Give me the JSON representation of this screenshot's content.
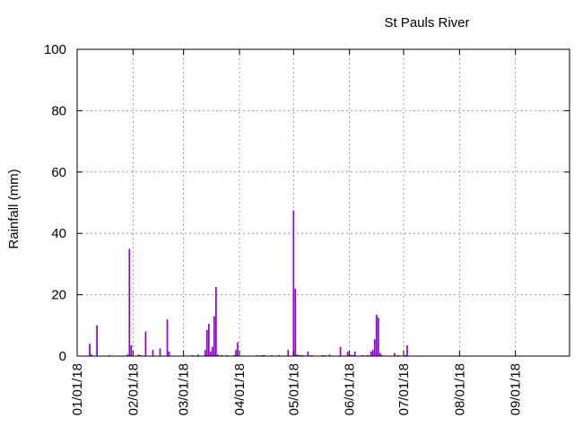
{
  "chart_data": {
    "type": "bar",
    "title": "St Pauls River",
    "xlabel": "",
    "ylabel": "Rainfall (mm)",
    "ylim": [
      0,
      100
    ],
    "yticks": [
      0,
      20,
      40,
      60,
      80,
      100
    ],
    "x_date_range": [
      "2018-01-01",
      "2018-09-30"
    ],
    "xtick_dates": [
      "2018-01-01",
      "2018-02-01",
      "2018-03-01",
      "2018-04-01",
      "2018-05-01",
      "2018-06-01",
      "2018-07-01",
      "2018-08-01",
      "2018-09-01"
    ],
    "xtick_labels": [
      "01/01/18",
      "02/01/18",
      "03/01/18",
      "04/01/18",
      "05/01/18",
      "06/01/18",
      "07/01/18",
      "08/01/18",
      "09/01/18"
    ],
    "grid": true,
    "bar_color": "#9400d3",
    "series": [
      {
        "x": [
          "2018-01-08",
          "2018-01-09",
          "2018-01-12",
          "2018-01-19",
          "2018-01-29",
          "2018-01-30",
          "2018-01-31",
          "2018-02-04",
          "2018-02-05",
          "2018-02-08",
          "2018-02-12",
          "2018-02-16",
          "2018-02-20",
          "2018-02-21",
          "2018-03-06",
          "2018-03-09",
          "2018-03-13",
          "2018-03-14",
          "2018-03-15",
          "2018-03-16",
          "2018-03-17",
          "2018-03-18",
          "2018-03-19",
          "2018-03-20",
          "2018-03-22",
          "2018-03-25",
          "2018-03-29",
          "2018-03-30",
          "2018-03-31",
          "2018-04-11",
          "2018-04-13",
          "2018-04-14",
          "2018-04-15",
          "2018-04-19",
          "2018-04-23",
          "2018-04-28",
          "2018-05-01",
          "2018-05-02",
          "2018-05-03",
          "2018-05-04",
          "2018-05-05",
          "2018-05-06",
          "2018-05-09",
          "2018-05-11",
          "2018-05-17",
          "2018-05-18",
          "2018-05-21",
          "2018-05-27",
          "2018-05-31",
          "2018-06-01",
          "2018-06-02",
          "2018-06-03",
          "2018-06-04",
          "2018-06-08",
          "2018-06-11",
          "2018-06-13",
          "2018-06-14",
          "2018-06-15",
          "2018-06-16",
          "2018-06-17",
          "2018-06-18",
          "2018-06-19",
          "2018-06-26",
          "2018-06-28",
          "2018-07-02",
          "2018-07-03"
        ],
        "values": [
          4,
          0.5,
          10,
          0.3,
          0.5,
          35,
          3.5,
          0.5,
          0.3,
          8,
          2,
          2.5,
          12,
          1.5,
          0.3,
          0.5,
          2,
          8.5,
          10.5,
          1.5,
          3,
          13,
          22.5,
          0.5,
          0.3,
          0.3,
          0.3,
          2,
          4.5,
          0.3,
          0.3,
          0.3,
          0.3,
          0.3,
          0.3,
          2,
          47.5,
          22,
          0.5,
          0.3,
          0.3,
          0.3,
          1.5,
          0.3,
          0.3,
          0.3,
          0.5,
          3,
          1.5,
          0.5,
          0.3,
          0.3,
          1.5,
          0.3,
          0.3,
          1.5,
          2,
          5.5,
          13.5,
          12.5,
          1,
          0.3,
          1,
          0.3,
          0.3,
          3.5
        ]
      }
    ]
  }
}
